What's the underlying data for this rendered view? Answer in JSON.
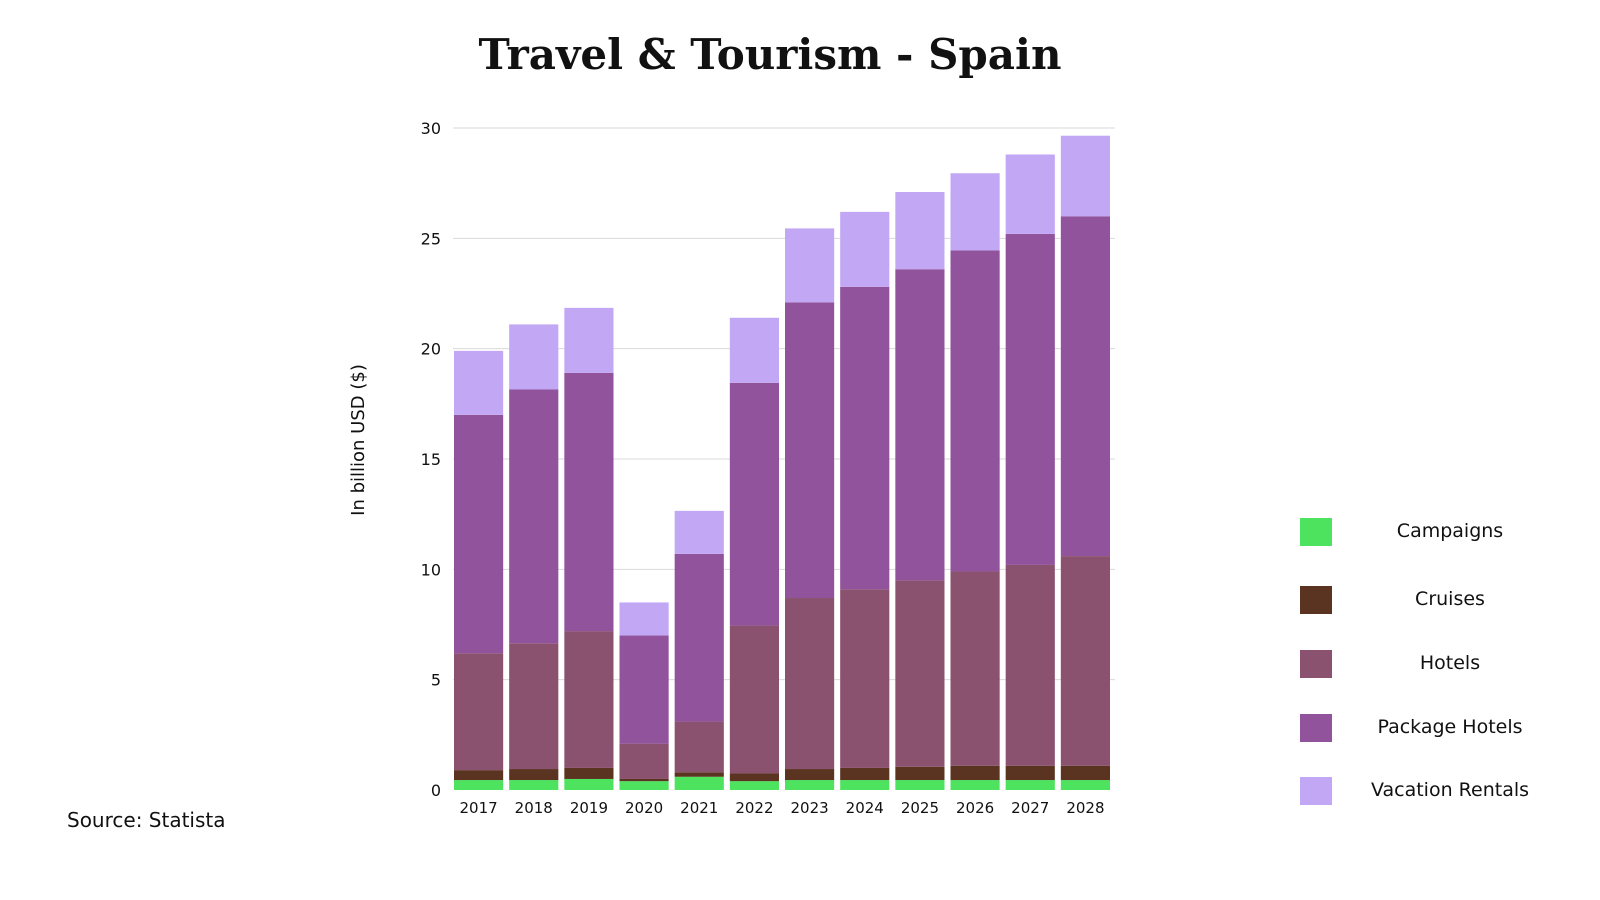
{
  "title": "Travel & Tourism - Spain",
  "source": "Source: Statista",
  "chart_data": {
    "type": "bar",
    "stacked": true,
    "ylabel": "In billion  USD ($)",
    "ylim": [
      0,
      30
    ],
    "yticks": [
      0,
      5,
      10,
      15,
      20,
      25,
      30
    ],
    "grid": true,
    "legend_position": "right",
    "categories": [
      "2017",
      "2018",
      "2019",
      "2020",
      "2021",
      "2022",
      "2023",
      "2024",
      "2025",
      "2026",
      "2027",
      "2028"
    ],
    "series": [
      {
        "name": "Campaigns",
        "color": "#4de35f",
        "values": [
          0.45,
          0.45,
          0.5,
          0.4,
          0.6,
          0.4,
          0.45,
          0.45,
          0.45,
          0.45,
          0.45,
          0.45
        ]
      },
      {
        "name": "Cruises",
        "color": "#5a3420",
        "values": [
          0.45,
          0.5,
          0.5,
          0.1,
          0.2,
          0.35,
          0.5,
          0.55,
          0.6,
          0.65,
          0.65,
          0.65
        ]
      },
      {
        "name": "Hotels",
        "color": "#8a526e",
        "values": [
          5.3,
          5.7,
          6.2,
          1.6,
          2.3,
          6.7,
          7.75,
          8.1,
          8.45,
          8.8,
          9.1,
          9.5
        ]
      },
      {
        "name": "Package Hotels",
        "color": "#90539c",
        "values": [
          10.8,
          11.5,
          11.7,
          4.9,
          7.6,
          11.0,
          13.4,
          13.7,
          14.1,
          14.55,
          15.0,
          15.4
        ]
      },
      {
        "name": "Vacation Rentals",
        "color": "#c2a8f4",
        "values": [
          2.9,
          2.95,
          2.95,
          1.5,
          1.95,
          2.95,
          3.35,
          3.4,
          3.5,
          3.5,
          3.6,
          3.65
        ]
      }
    ]
  }
}
